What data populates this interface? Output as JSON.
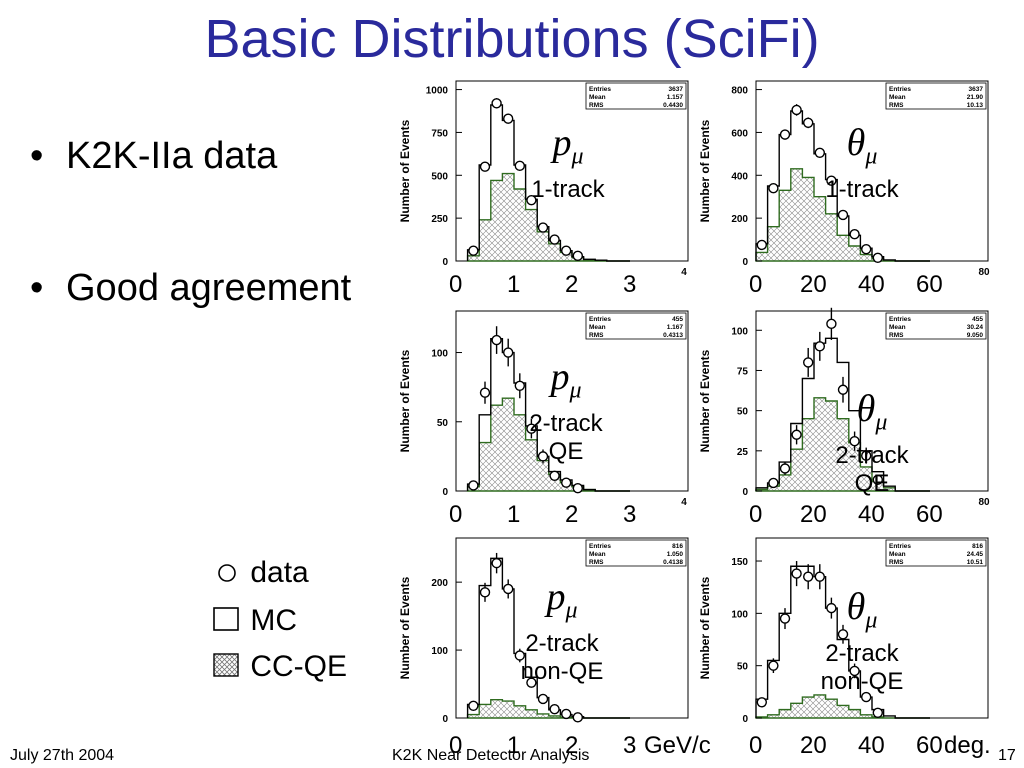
{
  "slide": {
    "title": "Basic Distributions (SciFi)",
    "bullets": [
      "K2K-IIa data",
      "Good agreement"
    ],
    "bullet_symbol": "•",
    "legend": [
      {
        "symbol": "open-circle-icon",
        "label": "data"
      },
      {
        "symbol": "open-square-icon",
        "label": "MC"
      },
      {
        "symbol": "hatched-square-icon",
        "label": "CC-QE"
      }
    ],
    "footer": {
      "date": "July 27th 2004",
      "center": "K2K Near Detector Analysis",
      "page": "17"
    },
    "colors": {
      "title": "#2a2a9c",
      "mc_line": "#000000",
      "ccqe_line": "#2f6b1f",
      "hatch": "#8a8a8a"
    }
  },
  "chart_data": [
    {
      "type": "bar",
      "panel": "p-1track",
      "label": {
        "var": "p",
        "sub": "μ",
        "lines": [
          "1-track"
        ]
      },
      "ylabel": "Number of Events",
      "yticks": [
        0,
        250,
        500,
        750,
        1000
      ],
      "ylim": [
        0,
        1050
      ],
      "xlim": [
        0,
        4
      ],
      "axis_ticks": [
        "4"
      ],
      "under_ticks": [
        {
          "x": 0,
          "t": "0"
        },
        {
          "x": 1,
          "t": "1"
        },
        {
          "x": 2,
          "t": "2"
        },
        {
          "x": 3,
          "t": "3"
        }
      ],
      "stats": [
        [
          "Entries",
          "3637"
        ],
        [
          "Mean",
          "1.157"
        ],
        [
          "RMS",
          "0.4430"
        ]
      ],
      "bins": [
        0.2,
        0.4,
        0.6,
        0.8,
        1.0,
        1.2,
        1.4,
        1.6,
        1.8,
        2.0,
        2.2,
        2.4,
        2.6,
        2.8,
        3.0
      ],
      "mc": [
        65,
        560,
        910,
        820,
        560,
        360,
        200,
        120,
        60,
        25,
        10,
        5,
        0,
        0
      ],
      "qe": [
        30,
        240,
        470,
        510,
        420,
        300,
        170,
        100,
        50,
        20,
        8,
        3,
        0,
        0
      ],
      "data": {
        "x": [
          0.3,
          0.5,
          0.7,
          0.9,
          1.1,
          1.3,
          1.5,
          1.7,
          1.9,
          2.1
        ],
        "y": [
          60,
          550,
          920,
          830,
          555,
          355,
          195,
          125,
          60,
          30
        ],
        "err": [
          8,
          24,
          30,
          29,
          24,
          19,
          14,
          11,
          8,
          5
        ]
      }
    },
    {
      "type": "bar",
      "panel": "theta-1track",
      "label": {
        "var": "θ",
        "sub": "μ",
        "lines": [
          "1-track"
        ]
      },
      "ylabel": "Number of Events",
      "yticks": [
        0,
        200,
        400,
        600,
        800
      ],
      "ylim": [
        0,
        840
      ],
      "xlim": [
        0,
        80
      ],
      "axis_ticks": [
        "80"
      ],
      "under_ticks": [
        {
          "x": 0,
          "t": "0"
        },
        {
          "x": 20,
          "t": "20"
        },
        {
          "x": 40,
          "t": "40"
        },
        {
          "x": 60,
          "t": "60"
        }
      ],
      "stats": [
        [
          "Entries",
          "3637"
        ],
        [
          "Mean",
          "21.90"
        ],
        [
          "RMS",
          "10.13"
        ]
      ],
      "bins": [
        0,
        4,
        8,
        12,
        16,
        20,
        24,
        28,
        32,
        36,
        40,
        44,
        48,
        52,
        56,
        60
      ],
      "mc": [
        80,
        350,
        590,
        700,
        640,
        500,
        380,
        210,
        120,
        60,
        20,
        5,
        0,
        0,
        0
      ],
      "qe": [
        40,
        160,
        330,
        430,
        390,
        300,
        220,
        120,
        70,
        30,
        10,
        3,
        0,
        0,
        0
      ],
      "data": {
        "x": [
          2,
          6,
          10,
          14,
          18,
          22,
          26,
          30,
          34,
          38,
          42
        ],
        "y": [
          75,
          340,
          590,
          705,
          645,
          505,
          375,
          215,
          125,
          55,
          15
        ],
        "err": [
          9,
          18,
          24,
          27,
          25,
          22,
          19,
          15,
          11,
          7,
          4
        ]
      }
    },
    {
      "type": "bar",
      "panel": "p-2track-qe",
      "label": {
        "var": "p",
        "sub": "μ",
        "lines": [
          "2-track",
          "QE"
        ]
      },
      "ylabel": "Number of Events",
      "yticks": [
        0,
        50,
        100
      ],
      "ylim": [
        0,
        130
      ],
      "xlim": [
        0,
        4
      ],
      "axis_ticks": [
        "4"
      ],
      "under_ticks": [
        {
          "x": 0,
          "t": "0"
        },
        {
          "x": 1,
          "t": "1"
        },
        {
          "x": 2,
          "t": "2"
        },
        {
          "x": 3,
          "t": "3"
        }
      ],
      "stats": [
        [
          "Entries",
          "455"
        ],
        [
          "Mean",
          "1.167"
        ],
        [
          "RMS",
          "0.4313"
        ]
      ],
      "bins": [
        0.2,
        0.4,
        0.6,
        0.8,
        1.0,
        1.2,
        1.4,
        1.6,
        1.8,
        2.0,
        2.2,
        2.4,
        2.6,
        2.8,
        3.0
      ],
      "mc": [
        5,
        55,
        110,
        100,
        78,
        47,
        25,
        14,
        8,
        4,
        1,
        0,
        0,
        0
      ],
      "qe": [
        3,
        35,
        62,
        67,
        55,
        37,
        22,
        12,
        6,
        3,
        1,
        0,
        0,
        0
      ],
      "data": {
        "x": [
          0.3,
          0.5,
          0.7,
          0.9,
          1.1,
          1.3,
          1.5,
          1.7,
          1.9,
          2.1
        ],
        "y": [
          4,
          71,
          109,
          100,
          76,
          45,
          25,
          11,
          6,
          2
        ],
        "err": [
          2,
          8,
          10,
          10,
          9,
          7,
          5,
          3,
          2,
          1
        ]
      }
    },
    {
      "type": "bar",
      "panel": "theta-2track-qe",
      "label": {
        "var": "θ",
        "sub": "μ",
        "lines": [
          "2-track",
          "QE"
        ]
      },
      "ylabel": "Number of Events",
      "yticks": [
        0,
        25,
        50,
        75,
        100
      ],
      "ylim": [
        0,
        112
      ],
      "xlim": [
        0,
        80
      ],
      "axis_ticks": [
        "80"
      ],
      "under_ticks": [
        {
          "x": 0,
          "t": "0"
        },
        {
          "x": 20,
          "t": "20"
        },
        {
          "x": 40,
          "t": "40"
        },
        {
          "x": 60,
          "t": "60"
        }
      ],
      "stats": [
        [
          "Entries",
          "455"
        ],
        [
          "Mean",
          "30.24"
        ],
        [
          "RMS",
          "9.050"
        ]
      ],
      "bins": [
        0,
        4,
        8,
        12,
        16,
        20,
        24,
        28,
        32,
        36,
        40,
        44,
        48,
        52,
        56,
        60
      ],
      "mc": [
        2,
        5,
        18,
        42,
        70,
        92,
        95,
        80,
        50,
        25,
        12,
        3,
        0,
        0,
        0
      ],
      "qe": [
        1,
        3,
        10,
        26,
        45,
        58,
        56,
        45,
        30,
        15,
        6,
        2,
        0,
        0,
        0
      ],
      "data": {
        "x": [
          6,
          10,
          14,
          18,
          22,
          26,
          30,
          34,
          38,
          42
        ],
        "y": [
          5,
          14,
          35,
          80,
          90,
          104,
          63,
          31,
          22,
          7
        ],
        "err": [
          2,
          4,
          6,
          9,
          9,
          10,
          8,
          6,
          5,
          3
        ]
      }
    },
    {
      "type": "bar",
      "panel": "p-2track-nonqe",
      "label": {
        "var": "p",
        "sub": "μ",
        "lines": [
          "2-track",
          "non-QE"
        ]
      },
      "ylabel": "Number of Events",
      "yticks": [
        0,
        100,
        200
      ],
      "ylim": [
        0,
        265
      ],
      "xlim": [
        0,
        4
      ],
      "axis_ticks": [],
      "under_ticks": [
        {
          "x": 0,
          "t": "0"
        },
        {
          "x": 1,
          "t": "1"
        },
        {
          "x": 2,
          "t": "2"
        },
        {
          "x": 3,
          "t": "3"
        }
      ],
      "unit": "GeV/c",
      "stats": [
        [
          "Entries",
          "816"
        ],
        [
          "Mean",
          "1.050"
        ],
        [
          "RMS",
          "0.4138"
        ]
      ],
      "bins": [
        0.2,
        0.4,
        0.6,
        0.8,
        1.0,
        1.2,
        1.4,
        1.6,
        1.8,
        2.0,
        2.2,
        2.4,
        2.6,
        2.8,
        3.0
      ],
      "mc": [
        20,
        195,
        235,
        190,
        95,
        60,
        30,
        12,
        5,
        2,
        0,
        0,
        0,
        0
      ],
      "qe": [
        5,
        20,
        27,
        25,
        18,
        12,
        6,
        3,
        1,
        0,
        0,
        0,
        0,
        0
      ],
      "data": {
        "x": [
          0.3,
          0.5,
          0.7,
          0.9,
          1.1,
          1.3,
          1.5,
          1.7,
          1.9,
          2.1
        ],
        "y": [
          18,
          185,
          228,
          190,
          92,
          52,
          28,
          13,
          6,
          1
        ],
        "err": [
          4,
          14,
          15,
          14,
          10,
          7,
          5,
          4,
          2,
          1
        ]
      }
    },
    {
      "type": "bar",
      "panel": "theta-2track-nonqe",
      "label": {
        "var": "θ",
        "sub": "μ",
        "lines": [
          "2-track",
          "non-QE"
        ]
      },
      "ylabel": "Number of Events",
      "yticks": [
        0,
        50,
        100,
        150
      ],
      "ylim": [
        0,
        172
      ],
      "xlim": [
        0,
        80
      ],
      "axis_ticks": [],
      "under_ticks": [
        {
          "x": 0,
          "t": "0"
        },
        {
          "x": 20,
          "t": "20"
        },
        {
          "x": 40,
          "t": "40"
        },
        {
          "x": 60,
          "t": "60"
        }
      ],
      "unit": "deg.",
      "stats": [
        [
          "Entries",
          "816"
        ],
        [
          "Mean",
          "24.45"
        ],
        [
          "RMS",
          "10.51"
        ]
      ],
      "bins": [
        0,
        4,
        8,
        12,
        16,
        20,
        24,
        28,
        32,
        36,
        40,
        44,
        48,
        52,
        56,
        60
      ],
      "mc": [
        18,
        55,
        100,
        145,
        145,
        135,
        105,
        75,
        45,
        20,
        8,
        2,
        0,
        0,
        0
      ],
      "qe": [
        1,
        3,
        8,
        14,
        20,
        22,
        18,
        12,
        8,
        3,
        1,
        0,
        0,
        0,
        0
      ],
      "data": {
        "x": [
          2,
          6,
          10,
          14,
          18,
          22,
          26,
          30,
          34,
          38,
          42
        ],
        "y": [
          15,
          50,
          95,
          138,
          135,
          135,
          105,
          80,
          45,
          20,
          5
        ],
        "err": [
          4,
          7,
          10,
          12,
          12,
          12,
          10,
          9,
          7,
          4,
          2
        ]
      }
    }
  ]
}
